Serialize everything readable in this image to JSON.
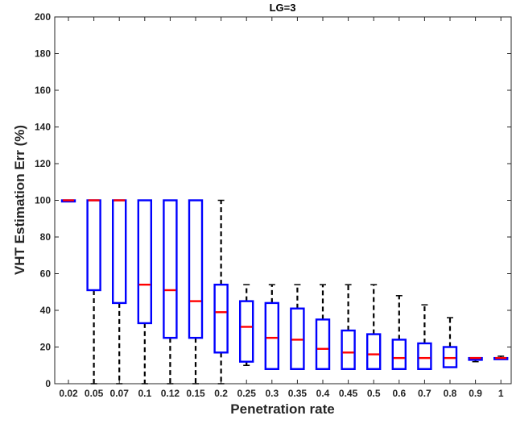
{
  "chart_data": {
    "type": "boxplot",
    "title": "LG=3",
    "xlabel": "Penetration rate",
    "ylabel": "VHT Estimation Err (%)",
    "ylim": [
      0,
      200
    ],
    "yticks": [
      0,
      20,
      40,
      60,
      80,
      100,
      120,
      140,
      160,
      180,
      200
    ],
    "grid": false,
    "colors": {
      "box": "#0000ff",
      "median": "#ff0000",
      "whisker": "#000000",
      "axis": "#262626"
    },
    "categories": [
      "0.02",
      "0.05",
      "0.07",
      "0.1",
      "0.12",
      "0.15",
      "0.2",
      "0.25",
      "0.3",
      "0.35",
      "0.4",
      "0.45",
      "0.5",
      "0.6",
      "0.7",
      "0.8",
      "0.9",
      "1"
    ],
    "boxes": [
      {
        "min": 100,
        "q1": 100,
        "median": 100,
        "q3": 100,
        "max": 100
      },
      {
        "min": 0,
        "q1": 51,
        "median": 100,
        "q3": 100,
        "max": 100
      },
      {
        "min": 0,
        "q1": 44,
        "median": 100,
        "q3": 100,
        "max": 100
      },
      {
        "min": 0,
        "q1": 33,
        "median": 54,
        "q3": 100,
        "max": 100
      },
      {
        "min": 0,
        "q1": 25,
        "median": 51,
        "q3": 100,
        "max": 100
      },
      {
        "min": 0,
        "q1": 25,
        "median": 45,
        "q3": 100,
        "max": 100
      },
      {
        "min": 0,
        "q1": 17,
        "median": 39,
        "q3": 54,
        "max": 100
      },
      {
        "min": 10,
        "q1": 12,
        "median": 31,
        "q3": 45,
        "max": 54
      },
      {
        "min": 8,
        "q1": 8,
        "median": 25,
        "q3": 44,
        "max": 54
      },
      {
        "min": 8,
        "q1": 8,
        "median": 24,
        "q3": 41,
        "max": 54
      },
      {
        "min": 8,
        "q1": 8,
        "median": 19,
        "q3": 35,
        "max": 54
      },
      {
        "min": 8,
        "q1": 8,
        "median": 17,
        "q3": 29,
        "max": 54
      },
      {
        "min": 8,
        "q1": 8,
        "median": 16,
        "q3": 27,
        "max": 54
      },
      {
        "min": 8,
        "q1": 8,
        "median": 14,
        "q3": 24,
        "max": 48
      },
      {
        "min": 8,
        "q1": 8,
        "median": 14,
        "q3": 22,
        "max": 43
      },
      {
        "min": 9,
        "q1": 9,
        "median": 14,
        "q3": 20,
        "max": 36
      },
      {
        "min": 12,
        "q1": 13,
        "median": 14,
        "q3": 14,
        "max": 14
      },
      {
        "min": 14,
        "q1": 14,
        "median": 14,
        "q3": 14,
        "max": 15
      }
    ]
  }
}
